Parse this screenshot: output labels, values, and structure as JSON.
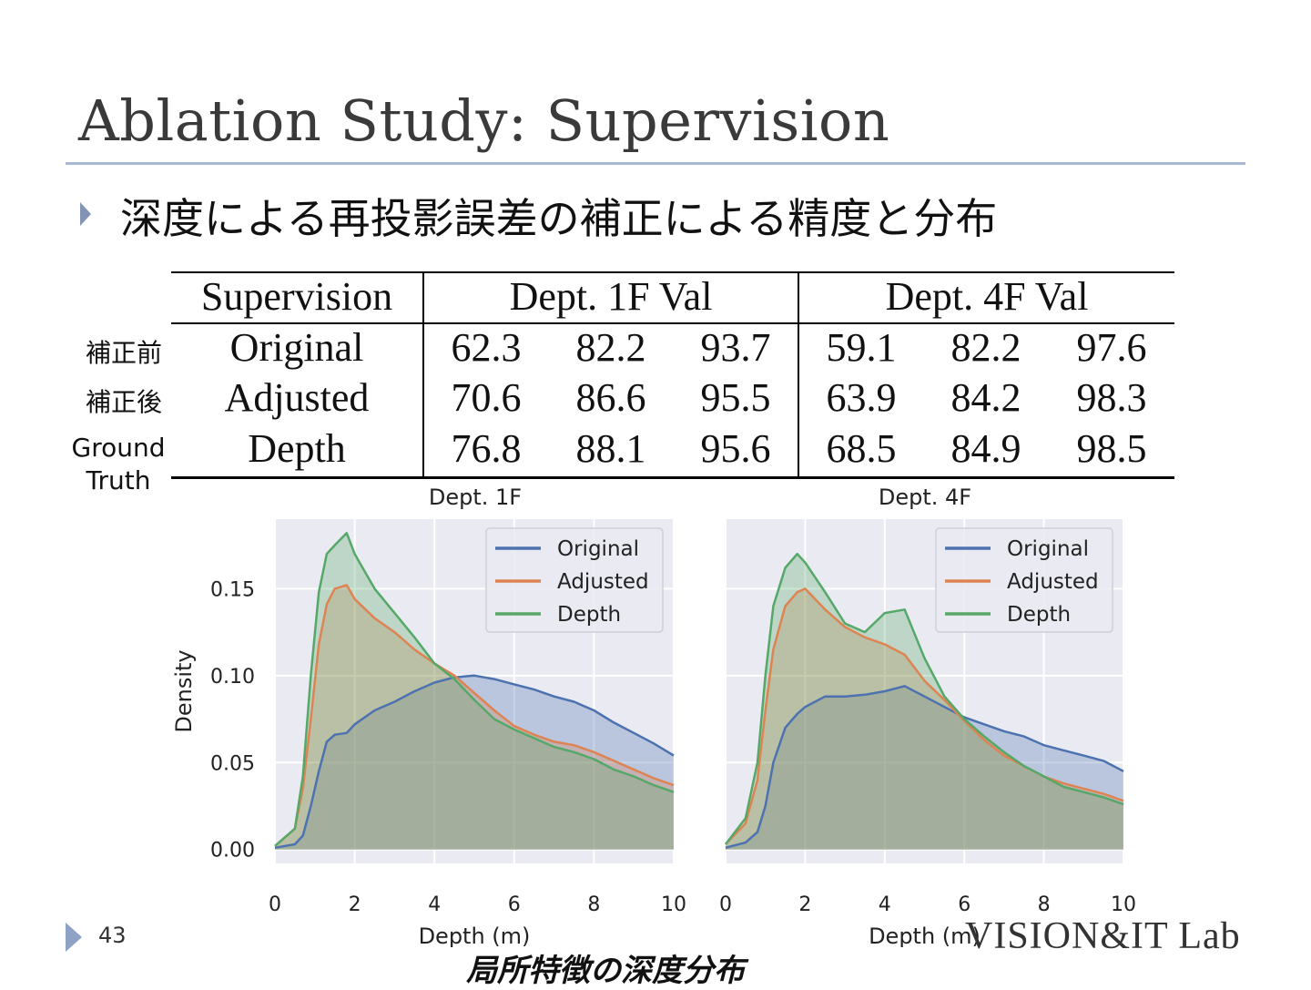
{
  "slide": {
    "title": "Ablation Study: Supervision",
    "bullet": "深度による再投影誤差の補正による精度と分布",
    "page_number": "43",
    "lab_logo": "VISION&IT Lab",
    "caption": "局所特徴の深度分布"
  },
  "table": {
    "headers": [
      "Supervision",
      "Dept. 1F Val",
      "Dept. 4F Val"
    ],
    "rows": [
      {
        "label": "補正前",
        "name": "Original",
        "values": [
          "62.3",
          "82.2",
          "93.7",
          "59.1",
          "82.2",
          "97.6"
        ]
      },
      {
        "label": "補正後",
        "name": "Adjusted",
        "values": [
          "70.6",
          "86.6",
          "95.5",
          "63.9",
          "84.2",
          "98.3"
        ]
      },
      {
        "label": "Ground Truth",
        "name": "Depth",
        "values": [
          "76.8",
          "88.1",
          "95.6",
          "68.5",
          "84.9",
          "98.5"
        ]
      }
    ]
  },
  "colors": {
    "original": "#4c72b0",
    "adjusted": "#dd8452",
    "depth": "#55a868",
    "plot_bg": "#eaeaf2"
  },
  "chart_data": [
    {
      "type": "area",
      "title": "Dept. 1F",
      "xlabel": "Depth (m)",
      "ylabel": "Density",
      "xlim": [
        0,
        10
      ],
      "ylim": [
        -0.008,
        0.19
      ],
      "xticks": [
        "0",
        "2",
        "4",
        "6",
        "8",
        "10"
      ],
      "yticks": [
        "0.00",
        "0.05",
        "0.10",
        "0.15"
      ],
      "grid": true,
      "legend": "top-right",
      "x": [
        0,
        0.5,
        0.7,
        0.9,
        1.1,
        1.3,
        1.5,
        1.8,
        2.0,
        2.5,
        3.0,
        3.5,
        4.0,
        4.5,
        5.0,
        5.5,
        6.0,
        6.5,
        7.0,
        7.5,
        8.0,
        8.5,
        9.0,
        9.5,
        10.0
      ],
      "series": [
        {
          "name": "Original",
          "values": [
            0.001,
            0.003,
            0.008,
            0.025,
            0.045,
            0.062,
            0.066,
            0.067,
            0.072,
            0.08,
            0.085,
            0.091,
            0.096,
            0.099,
            0.1,
            0.098,
            0.095,
            0.092,
            0.088,
            0.085,
            0.08,
            0.073,
            0.067,
            0.061,
            0.054
          ]
        },
        {
          "name": "Adjusted",
          "values": [
            0.002,
            0.012,
            0.035,
            0.075,
            0.118,
            0.141,
            0.15,
            0.152,
            0.144,
            0.133,
            0.125,
            0.115,
            0.107,
            0.1,
            0.09,
            0.08,
            0.071,
            0.066,
            0.062,
            0.06,
            0.056,
            0.051,
            0.046,
            0.041,
            0.037
          ]
        },
        {
          "name": "Depth",
          "values": [
            0.002,
            0.012,
            0.042,
            0.1,
            0.148,
            0.17,
            0.175,
            0.182,
            0.17,
            0.15,
            0.136,
            0.122,
            0.107,
            0.098,
            0.086,
            0.075,
            0.069,
            0.064,
            0.059,
            0.056,
            0.052,
            0.046,
            0.042,
            0.037,
            0.033
          ]
        }
      ]
    },
    {
      "type": "area",
      "title": "Dept. 4F",
      "xlabel": "Depth (m)",
      "ylabel": "",
      "xlim": [
        0,
        10
      ],
      "ylim": [
        -0.008,
        0.19
      ],
      "xticks": [
        "0",
        "2",
        "4",
        "6",
        "8",
        "10"
      ],
      "yticks": [],
      "grid": true,
      "legend": "top-right",
      "x": [
        0,
        0.5,
        0.8,
        1.0,
        1.2,
        1.5,
        1.8,
        2.0,
        2.5,
        3.0,
        3.5,
        4.0,
        4.5,
        5.0,
        5.5,
        6.0,
        6.5,
        7.0,
        7.5,
        8.0,
        8.5,
        9.0,
        9.5,
        10.0
      ],
      "series": [
        {
          "name": "Original",
          "values": [
            0.001,
            0.004,
            0.01,
            0.025,
            0.05,
            0.07,
            0.078,
            0.082,
            0.088,
            0.088,
            0.089,
            0.091,
            0.094,
            0.088,
            0.082,
            0.076,
            0.072,
            0.068,
            0.065,
            0.06,
            0.057,
            0.054,
            0.051,
            0.045
          ]
        },
        {
          "name": "Adjusted",
          "values": [
            0.003,
            0.015,
            0.04,
            0.08,
            0.115,
            0.14,
            0.148,
            0.15,
            0.138,
            0.128,
            0.122,
            0.118,
            0.112,
            0.097,
            0.086,
            0.074,
            0.063,
            0.054,
            0.048,
            0.042,
            0.038,
            0.035,
            0.032,
            0.028
          ]
        },
        {
          "name": "Depth",
          "values": [
            0.003,
            0.018,
            0.05,
            0.1,
            0.14,
            0.162,
            0.17,
            0.165,
            0.148,
            0.13,
            0.125,
            0.136,
            0.138,
            0.11,
            0.088,
            0.075,
            0.065,
            0.056,
            0.048,
            0.042,
            0.036,
            0.033,
            0.03,
            0.026
          ]
        }
      ]
    }
  ]
}
